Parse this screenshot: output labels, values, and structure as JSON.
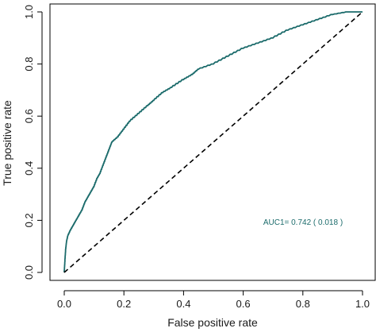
{
  "chart_data": {
    "type": "line",
    "xlabel": "False positive rate",
    "ylabel": "True positive rate",
    "xlim": [
      0,
      1
    ],
    "ylim": [
      0,
      1
    ],
    "xticks": [
      "0.0",
      "0.2",
      "0.4",
      "0.6",
      "0.8",
      "1.0"
    ],
    "yticks": [
      "0.0",
      "0.2",
      "0.4",
      "0.6",
      "0.8",
      "1.0"
    ],
    "grid": false,
    "annotation": "AUC1= 0.742 ( 0.018 )",
    "series": [
      {
        "color": "#1b6b6b",
        "x": [
          0,
          0.002,
          0.005,
          0.008,
          0.012,
          0.02,
          0.03,
          0.04,
          0.05,
          0.06,
          0.07,
          0.08,
          0.09,
          0.1,
          0.11,
          0.12,
          0.13,
          0.14,
          0.15,
          0.16,
          0.18,
          0.2,
          0.22,
          0.25,
          0.28,
          0.3,
          0.33,
          0.36,
          0.4,
          0.43,
          0.45,
          0.5,
          0.55,
          0.6,
          0.65,
          0.7,
          0.75,
          0.8,
          0.85,
          0.9,
          0.95,
          1.0
        ],
        "y": [
          0,
          0.04,
          0.09,
          0.12,
          0.14,
          0.16,
          0.18,
          0.2,
          0.22,
          0.24,
          0.27,
          0.29,
          0.31,
          0.33,
          0.36,
          0.38,
          0.41,
          0.44,
          0.47,
          0.5,
          0.52,
          0.55,
          0.58,
          0.61,
          0.64,
          0.66,
          0.69,
          0.71,
          0.74,
          0.76,
          0.78,
          0.8,
          0.83,
          0.86,
          0.88,
          0.9,
          0.93,
          0.95,
          0.97,
          0.99,
          1.0,
          1.0
        ]
      },
      {
        "color": "#000000",
        "dashed": true,
        "x": [
          0,
          1
        ],
        "y": [
          0,
          1
        ]
      }
    ]
  }
}
